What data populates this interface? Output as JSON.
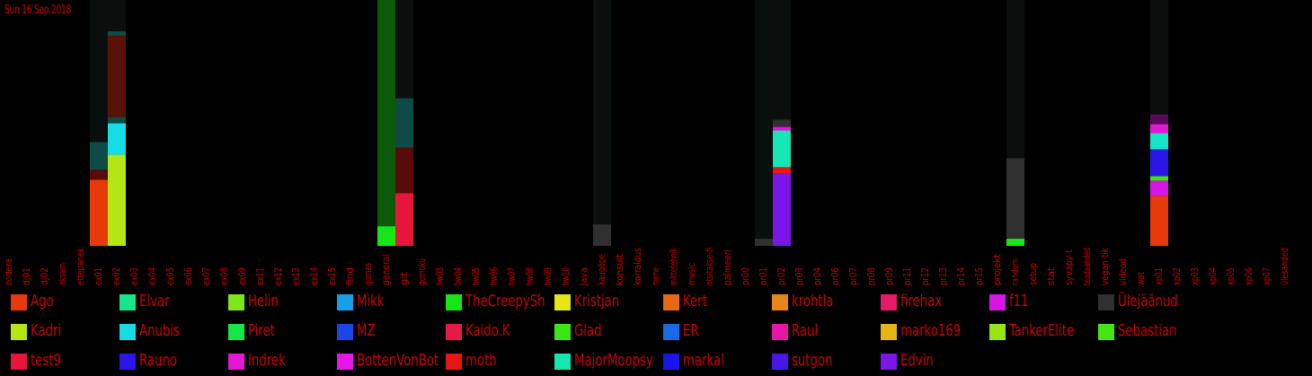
{
  "header": {
    "date": "Sun 16 Sep 2018"
  },
  "legend": [
    {
      "name": "Ago",
      "color": "#e63a0a"
    },
    {
      "name": "Elvar",
      "color": "#16e68c"
    },
    {
      "name": "Helin",
      "color": "#7ee61a"
    },
    {
      "name": "Mikk",
      "color": "#169ee6"
    },
    {
      "name": "TheCreepySh",
      "color": "#16e616"
    },
    {
      "name": "Kristjan",
      "color": "#e6e616"
    },
    {
      "name": "Kert",
      "color": "#e66a16"
    },
    {
      "name": "krohtla",
      "color": "#e6861a"
    },
    {
      "name": "firehax",
      "color": "#e61a6a"
    },
    {
      "name": "f11",
      "color": "#d616e6"
    },
    {
      "name": "Ülejäänud",
      "color": "#303030"
    },
    {
      "name": "Kadri",
      "color": "#b4e616"
    },
    {
      "name": "Anubis",
      "color": "#16dce6"
    },
    {
      "name": "Piret",
      "color": "#16e646"
    },
    {
      "name": "MZ",
      "color": "#1a46e6"
    },
    {
      "name": "Kaido.K",
      "color": "#e61a46"
    },
    {
      "name": "Glad",
      "color": "#3ce616"
    },
    {
      "name": "ER",
      "color": "#1a6ae6"
    },
    {
      "name": "Raul",
      "color": "#e616a6"
    },
    {
      "name": "marko169",
      "color": "#e6b416"
    },
    {
      "name": "TankerElite",
      "color": "#96e616"
    },
    {
      "name": "Sebastian",
      "color": "#46e616"
    },
    {
      "name": "test9",
      "color": "#e6163a"
    },
    {
      "name": "Rauno",
      "color": "#2a16e6"
    },
    {
      "name": "Indrek",
      "color": "#e616d6"
    },
    {
      "name": "BottenVonBot",
      "color": "#e616e6"
    },
    {
      "name": "moth",
      "color": "#e61616"
    },
    {
      "name": "MajorMoopsy",
      "color": "#16e6b4"
    },
    {
      "name": "markal",
      "color": "#1616e6"
    },
    {
      "name": "sutgon",
      "color": "#4a16e6"
    },
    {
      "name": "Edvin",
      "color": "#7a16e6"
    }
  ],
  "chart_data": {
    "type": "bar",
    "stacked": true,
    "categories": [
      "codera",
      "dj01",
      "dj02",
      "eksam",
      "ettepanek",
      "ex01",
      "ex02",
      "ex03",
      "ex04",
      "ex05",
      "ex06",
      "ex07",
      "ex08",
      "ex09",
      "ex11",
      "ex12",
      "ex13",
      "ex14",
      "ex15",
      "find",
      "games",
      "general",
      "git",
      "gomoku",
      "hw03",
      "hw04",
      "hw05",
      "hw06",
      "hw07",
      "hw08",
      "hw09",
      "hw10",
      "java",
      "kaugõpe",
      "konsult",
      "korraldus",
      "meme",
      "mittetehnik",
      "music",
      "otsitakse-fi",
      "palmeeri",
      "pr00",
      "pr01",
      "pr02",
      "pr03",
      "pr04",
      "pr06",
      "pr07",
      "pr08",
      "pr09",
      "pr11",
      "pr12",
      "pr13",
      "pr14",
      "pr15",
      "projekt",
      "random",
      "setup",
      "stat",
      "syvapy-t",
      "teadaanded",
      "vegan-tik",
      "videod",
      "wat",
      "xp01",
      "xp02",
      "xp03",
      "xp04",
      "xp05",
      "xp06",
      "xp07",
      "ülesanded"
    ],
    "ylim": [
      0,
      275
    ],
    "background_channels": {
      "ex01": 275,
      "ex02": 275,
      "general": 275,
      "git": 275,
      "kaugõpe": 275,
      "pr01": 275,
      "pr02": 275,
      "random": 275,
      "xp01": 275
    },
    "segments": {
      "ex01": [
        {
          "name": "Ago",
          "value": 74,
          "color": "#e63a0a"
        },
        {
          "name": "moth",
          "value": 11,
          "color": "#5a0a0a"
        },
        {
          "name": "MajorMoopsy",
          "value": 31,
          "color": "#0e4a46"
        }
      ],
      "ex02": [
        {
          "name": "Kadri",
          "value": 102,
          "color": "#b4e616"
        },
        {
          "name": "Anubis",
          "value": 35,
          "color": "#16dce6"
        },
        {
          "name": "MajorMoopsy",
          "value": 7,
          "color": "#0e4a46"
        },
        {
          "name": "moth",
          "value": 91,
          "color": "#5a1208"
        },
        {
          "name": "Elvar",
          "value": 5,
          "color": "#0e4a46"
        }
      ],
      "general": [
        {
          "name": "TheCreepySh",
          "value": 22,
          "color": "#16e616"
        },
        {
          "name": "Piret",
          "value": 253,
          "color": "#0a5a0a"
        }
      ],
      "git": [
        {
          "name": "test9",
          "value": 59,
          "color": "#e6163a"
        },
        {
          "name": "moth",
          "value": 51,
          "color": "#5a0a0a"
        },
        {
          "name": "MajorMoopsy",
          "value": 55,
          "color": "#0e4a46"
        }
      ],
      "kaugõpe": [
        {
          "name": "Ülejäänud",
          "value": 24,
          "color": "#303030"
        }
      ],
      "pr01": [
        {
          "name": "Ülejäänud",
          "value": 8,
          "color": "#303030"
        }
      ],
      "pr02": [
        {
          "name": "Edvin",
          "value": 81,
          "color": "#7a16e6"
        },
        {
          "name": "moth",
          "value": 7,
          "color": "#e61616"
        },
        {
          "name": "MajorMoopsy",
          "value": 41,
          "color": "#16e6b4"
        },
        {
          "name": "Indrek",
          "value": 4,
          "color": "#e616d6"
        },
        {
          "name": "Ülejäänud",
          "value": 8,
          "color": "#303030"
        }
      ],
      "random": [
        {
          "name": "TheCreepySh",
          "value": 8,
          "color": "#16e616"
        },
        {
          "name": "Ülejäänud",
          "value": 90,
          "color": "#303030"
        }
      ],
      "xp01": [
        {
          "name": "Ago",
          "value": 56,
          "color": "#e63a0a"
        },
        {
          "name": "BottenVonBot",
          "value": 17,
          "color": "#d616e6"
        },
        {
          "name": "Glad",
          "value": 5,
          "color": "#3ce616"
        },
        {
          "name": "sutgon",
          "value": 30,
          "color": "#2a16e6"
        },
        {
          "name": "MajorMoopsy",
          "value": 18,
          "color": "#16e6c8"
        },
        {
          "name": "Indrek",
          "value": 10,
          "color": "#e616d6"
        },
        {
          "name": "Raul",
          "value": 11,
          "color": "#5a0a5a"
        }
      ]
    }
  }
}
